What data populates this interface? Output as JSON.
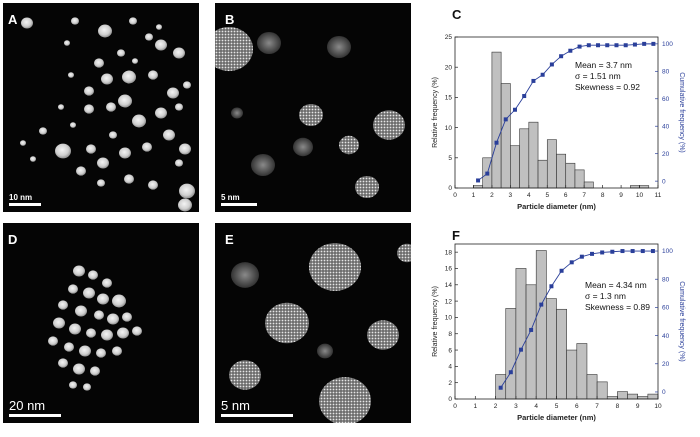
{
  "panels": {
    "A": {
      "label": "A",
      "scale_bar": "10 nm"
    },
    "B": {
      "label": "B",
      "scale_bar": "5 nm"
    },
    "C": {
      "label": "C"
    },
    "D": {
      "label": "D",
      "scale_bar": "20 nm"
    },
    "E": {
      "label": "E",
      "scale_bar": "5 nm"
    },
    "F": {
      "label": "F"
    }
  },
  "colors": {
    "bars": "#c0c0c0",
    "bar_edge": "#333333",
    "cumulative": "#2a3f9a",
    "right_axis": "#2a3f9a"
  },
  "chart_data": [
    {
      "panel": "C",
      "type": "bar",
      "xlabel": "Particle diameter (nm)",
      "ylabel": "Relative frequency (%)",
      "y2label": "Cumulative frequency (%)",
      "xlim": [
        0,
        11
      ],
      "ylim": [
        0,
        25
      ],
      "y2lim": [
        -5,
        105
      ],
      "xticks": [
        "0",
        "1",
        "2",
        "3",
        "4",
        "5",
        "6",
        "7",
        "8",
        "9",
        "10",
        "11"
      ],
      "yticks": [
        "0",
        "5",
        "10",
        "15",
        "20",
        "25"
      ],
      "y2ticks": [
        "0",
        "20",
        "40",
        "60",
        "80",
        "100"
      ],
      "stats": {
        "mean": "Mean = 3.7 nm",
        "sigma": "σ = 1.51 nm",
        "skewness": "Skewness = 0.92"
      },
      "bars": {
        "x": [
          1.25,
          1.75,
          2.25,
          2.75,
          3.25,
          3.75,
          4.25,
          4.75,
          5.25,
          5.75,
          6.25,
          6.75,
          7.25,
          9.75,
          10.25
        ],
        "values": [
          0.4,
          5.0,
          22.5,
          17.3,
          7.0,
          9.8,
          10.9,
          4.6,
          8.0,
          5.6,
          4.1,
          3.0,
          1.0,
          0.4,
          0.4
        ]
      },
      "cumulative": {
        "x": [
          1.25,
          1.75,
          2.25,
          2.75,
          3.25,
          3.75,
          4.25,
          4.75,
          5.25,
          5.75,
          6.25,
          6.75,
          7.25,
          7.75,
          8.25,
          8.75,
          9.25,
          9.75,
          10.25,
          10.75
        ],
        "values": [
          0.5,
          5.5,
          28,
          45,
          52,
          62,
          73,
          77.5,
          85,
          91,
          95,
          98,
          99,
          99,
          99,
          99,
          99,
          99.5,
          100,
          100
        ]
      }
    },
    {
      "panel": "F",
      "type": "bar",
      "xlabel": "Particle diameter (nm)",
      "ylabel": "Relative frequency (%)",
      "y2label": "Cumulative frequency (%)",
      "xlim": [
        0,
        10
      ],
      "ylim": [
        0,
        19
      ],
      "y2lim": [
        -5,
        105
      ],
      "xticks": [
        "0",
        "1",
        "2",
        "3",
        "4",
        "5",
        "6",
        "7",
        "8",
        "9",
        "10"
      ],
      "yticks": [
        "0",
        "2",
        "4",
        "6",
        "8",
        "10",
        "12",
        "14",
        "16",
        "18"
      ],
      "y2ticks": [
        "0",
        "20",
        "40",
        "60",
        "80",
        "100"
      ],
      "stats": {
        "mean": "Mean = 4.34 nm",
        "sigma": "σ =   1.3 nm",
        "skewness": "Skewness = 0.89"
      },
      "bars": {
        "x": [
          2.25,
          2.75,
          3.25,
          3.75,
          4.25,
          4.75,
          5.25,
          5.75,
          6.25,
          6.75,
          7.25,
          7.75,
          8.25,
          8.75,
          9.25,
          9.75
        ],
        "values": [
          3.0,
          11.1,
          16.0,
          14.0,
          18.2,
          12.3,
          11.0,
          6.0,
          6.8,
          3.0,
          2.1,
          0.3,
          0.9,
          0.6,
          0.3,
          0.6
        ]
      },
      "cumulative": {
        "x": [
          2.25,
          2.75,
          3.25,
          3.75,
          4.25,
          4.75,
          5.25,
          5.75,
          6.25,
          6.75,
          7.25,
          7.75,
          8.25,
          8.75,
          9.25,
          9.75
        ],
        "values": [
          3,
          14,
          30,
          44,
          62,
          75,
          86,
          92,
          96,
          98,
          99,
          99.5,
          100,
          100,
          100,
          100
        ]
      }
    }
  ]
}
